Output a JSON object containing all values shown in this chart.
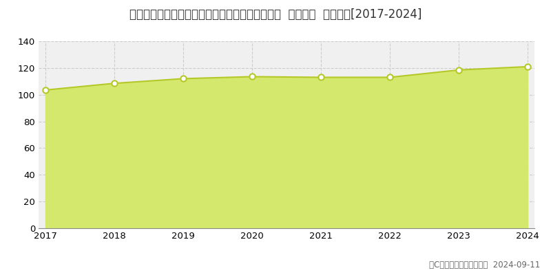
{
  "title": "埼玉県さいたま市中央区鈴谷２丁目７４４番１外  地価公示  地価推移[2017-2024]",
  "years": [
    2017,
    2018,
    2019,
    2020,
    2021,
    2022,
    2023,
    2024
  ],
  "values": [
    103.5,
    108.5,
    112.0,
    113.5,
    113.0,
    113.0,
    118.5,
    121.0
  ],
  "ylim": [
    0,
    140
  ],
  "yticks": [
    0,
    20,
    40,
    60,
    80,
    100,
    120,
    140
  ],
  "line_color": "#b5c827",
  "fill_color": "#d4e86e",
  "fill_alpha": 1.0,
  "marker_facecolor": "#ffffff",
  "marker_edgecolor": "#b5c827",
  "marker_size": 6,
  "marker_linewidth": 1.5,
  "grid_color": "#cccccc",
  "grid_linestyle": "--",
  "background_color": "#ffffff",
  "plot_bg_color": "#f0f0f0",
  "legend_color": "#c8dc50",
  "copyright_text": "（C）土地価格ドットコム  2024-09-11",
  "title_fontsize": 12,
  "tick_fontsize": 9.5,
  "legend_fontsize": 9.5,
  "copyright_fontsize": 8.5
}
